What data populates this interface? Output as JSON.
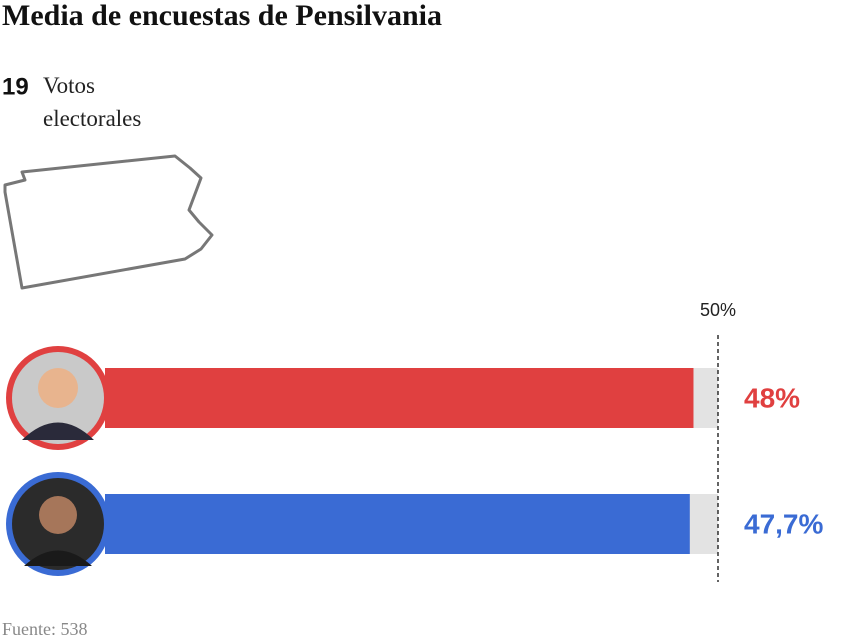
{
  "chart_data": {
    "type": "bar",
    "title": "Media de encuestas de Pensilvania",
    "electoral_votes": 19,
    "electoral_votes_label": "Votos electorales",
    "values": [
      48,
      47.7
    ],
    "value_labels": [
      "48%",
      "47,7%"
    ],
    "colors": [
      "#e04040",
      "#3a6bd4"
    ],
    "xlim": [
      0,
      50
    ],
    "xticks": [
      {
        "value": 50,
        "label": "50%"
      }
    ],
    "source": "Fuente: 538"
  }
}
